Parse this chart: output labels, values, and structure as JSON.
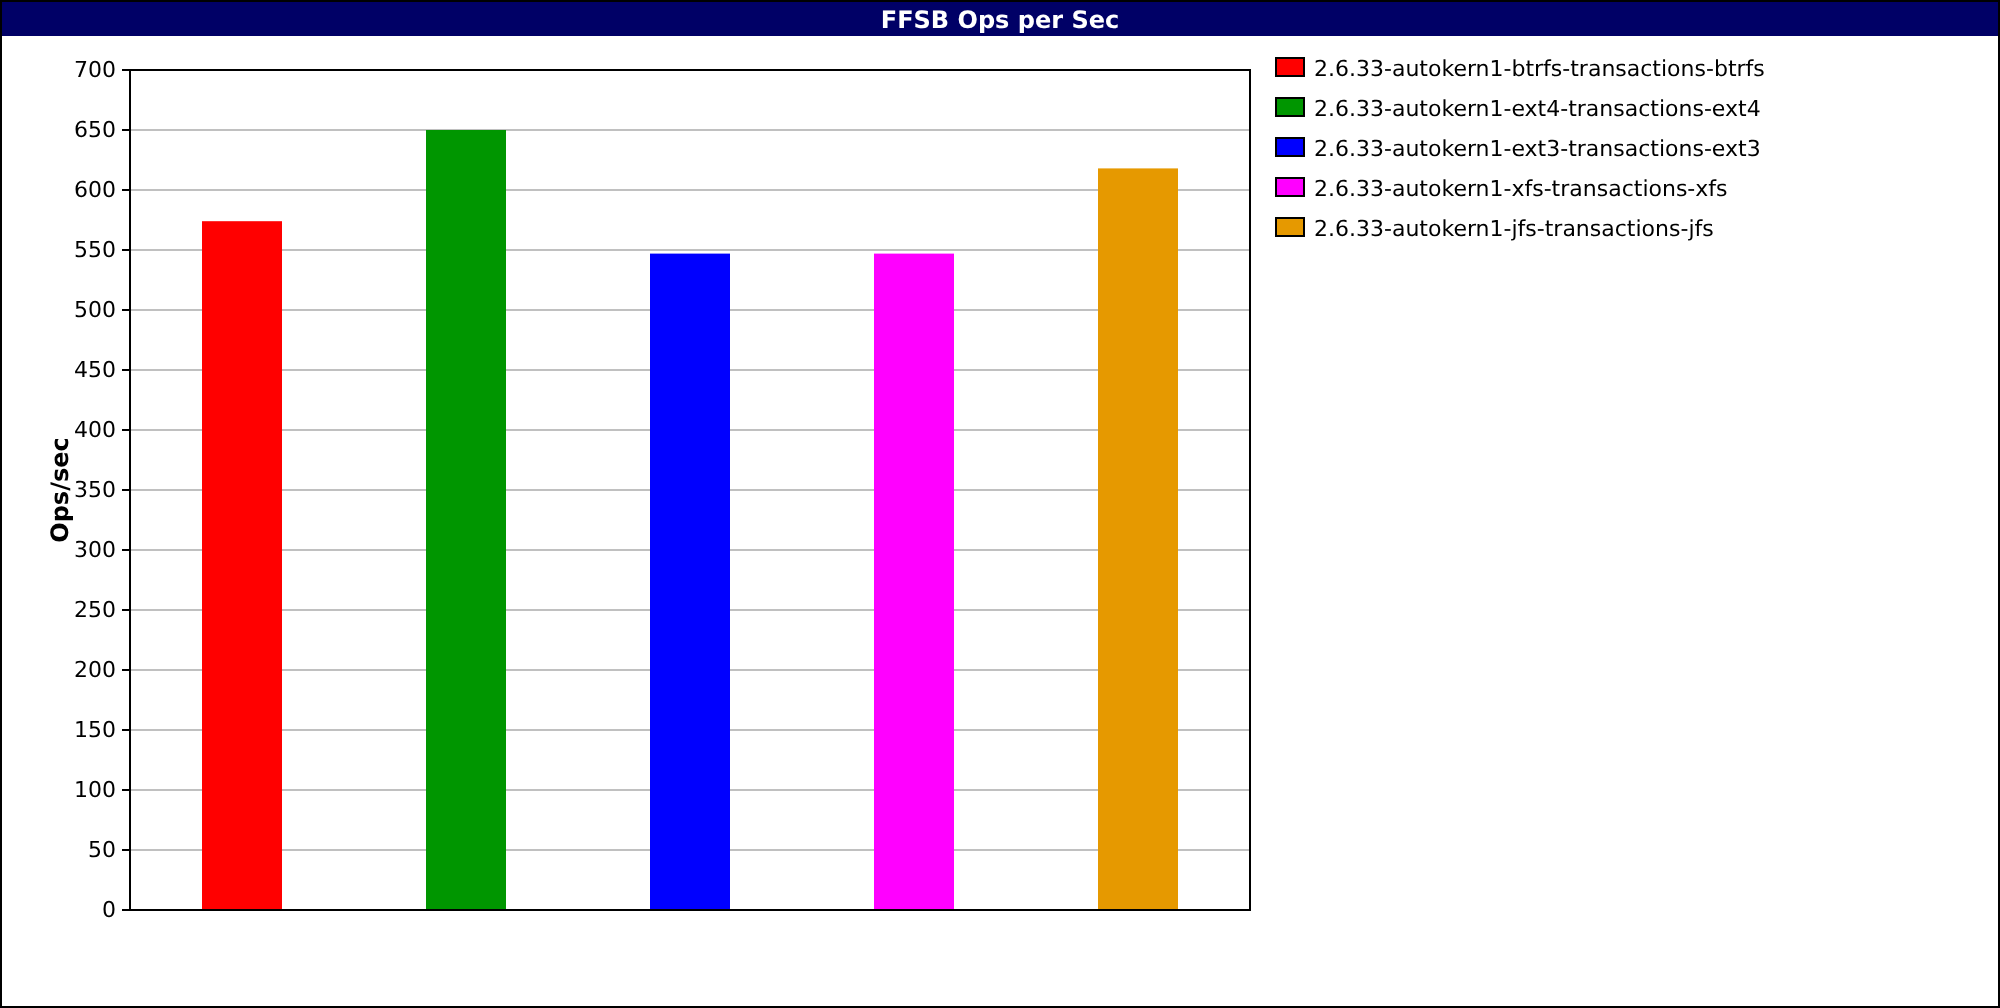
{
  "chart_data": {
    "type": "bar",
    "title": "FFSB Ops per Sec",
    "ylabel": "Ops/sec",
    "categories": [
      null,
      null,
      null,
      null,
      null
    ],
    "series": [
      {
        "name": "2.6.33-autokern1-btrfs-transactions-btrfs",
        "color": "#ff0000",
        "values": [
          574,
          null,
          null,
          null,
          null
        ]
      },
      {
        "name": "2.6.33-autokern1-ext4-transactions-ext4",
        "color": "#009600",
        "values": [
          null,
          650,
          null,
          null,
          null
        ]
      },
      {
        "name": "2.6.33-autokern1-ext3-transactions-ext3",
        "color": "#0000ff",
        "values": [
          null,
          null,
          547,
          null,
          null
        ]
      },
      {
        "name": "2.6.33-autokern1-xfs-transactions-xfs",
        "color": "#ff00ff",
        "values": [
          null,
          null,
          null,
          547,
          null
        ]
      },
      {
        "name": "2.6.33-autokern1-jfs-transactions-jfs",
        "color": "#e69900",
        "values": [
          null,
          null,
          null,
          null,
          618
        ]
      }
    ],
    "ylim": [
      0,
      700
    ],
    "yticks": [
      0,
      50,
      100,
      150,
      200,
      250,
      300,
      350,
      400,
      450,
      500,
      550,
      600,
      650,
      700
    ],
    "grid": "y",
    "legend": "top right"
  }
}
